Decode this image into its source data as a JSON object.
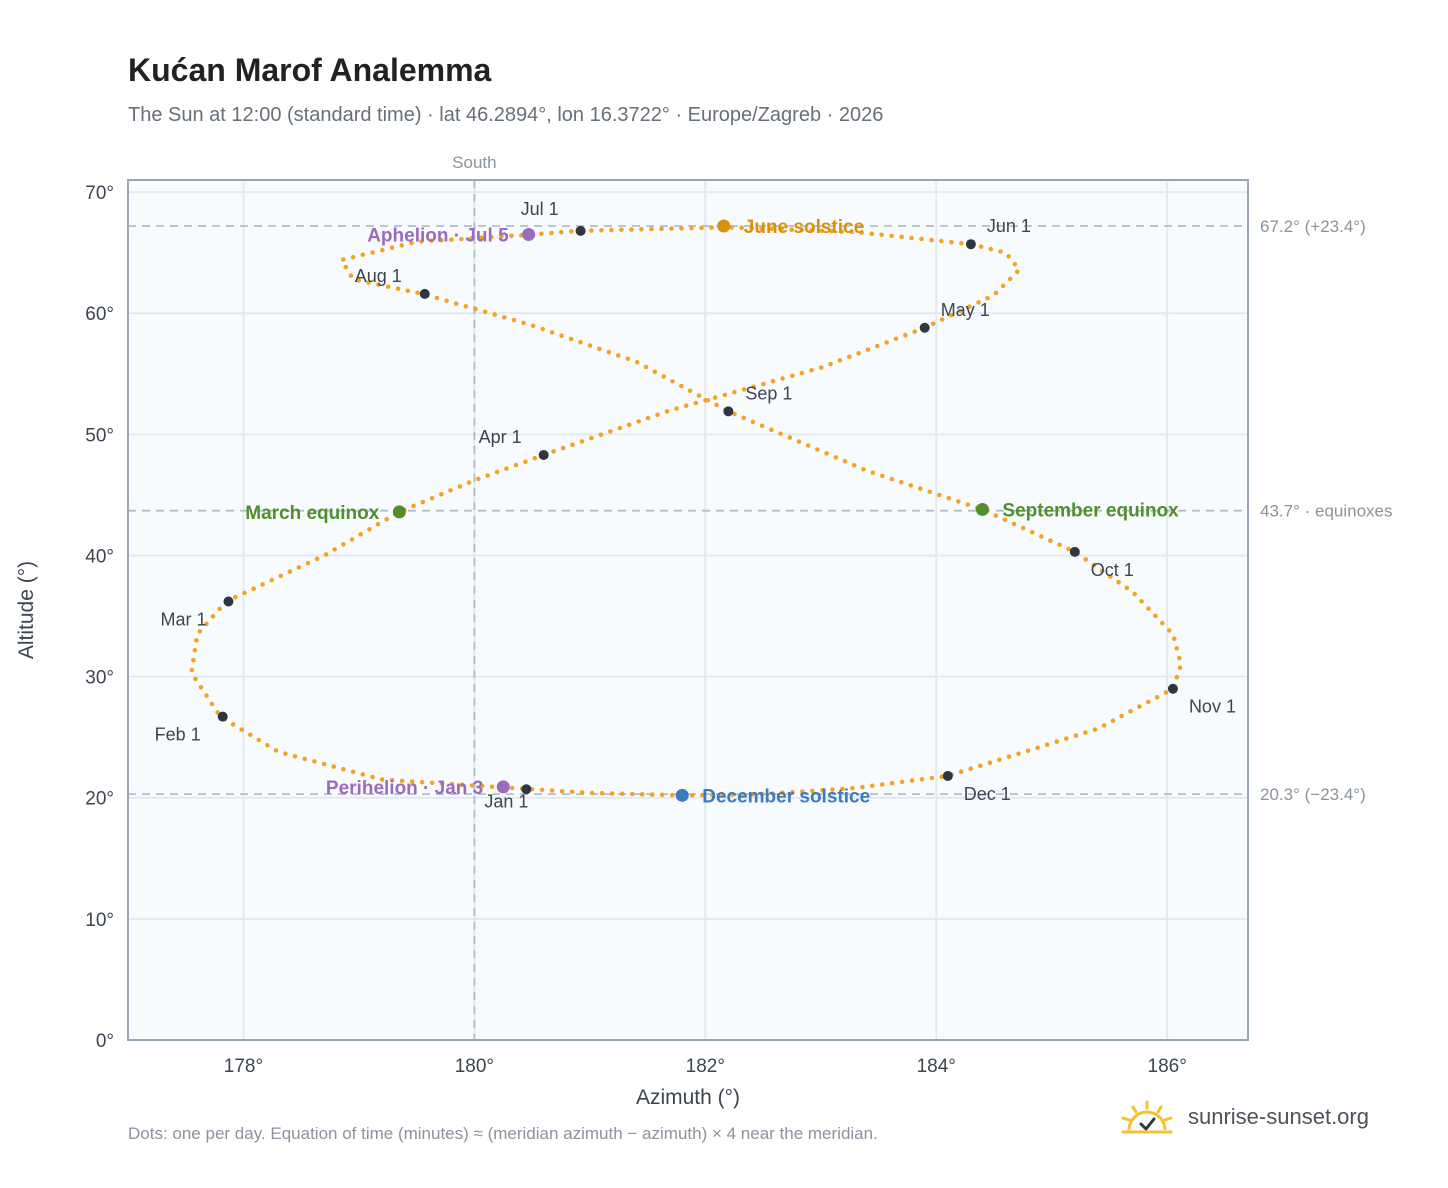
{
  "title": "Kućan Marof Analemma",
  "subtitle": "The Sun at 12:00 (standard time) · lat 46.2894°, lon 16.3722° · Europe/Zagreb · 2026",
  "footnote": "Dots: one per day. Equation of time (minutes) ≈ (meridian azimuth − azimuth) × 4 near the meridian.",
  "brand": {
    "name": "sunrise-sunset.org",
    "icon": "sunrise-logo-icon"
  },
  "colors": {
    "curve": "#f2a427",
    "month_dot": "#2f3640",
    "june_solstice": "#d9920c",
    "december_solstice": "#3a7bc0",
    "equinox": "#4f8f2e",
    "apsis": "#9b6bbd",
    "grid": "#e4e9ef",
    "axis_border": "#9aa6b4",
    "plot_bg": "#f8fbfd",
    "ref_line": "#b4bec9",
    "text_main": "#3d4550",
    "text_muted": "#8a939e"
  },
  "chart_data": {
    "type": "scatter",
    "title": "Kućan Marof Analemma",
    "xlabel": "Azimuth (°)",
    "ylabel": "Altitude (°)",
    "xlim": [
      177.0,
      186.7
    ],
    "ylim": [
      0,
      71
    ],
    "xticks": [
      178,
      180,
      182,
      184,
      186
    ],
    "xtick_labels": [
      "178°",
      "180°",
      "182°",
      "184°",
      "186°"
    ],
    "yticks": [
      0,
      10,
      20,
      30,
      40,
      50,
      60,
      70
    ],
    "ytick_labels": [
      "0°",
      "10°",
      "20°",
      "30°",
      "40°",
      "50°",
      "60°",
      "70°"
    ],
    "grid": true,
    "south_line": {
      "x": 180,
      "label": "South"
    },
    "reference_lines": [
      {
        "y": 67.2,
        "label": "67.2° (+23.4°)"
      },
      {
        "y": 43.7,
        "label": "43.7° · equinoxes"
      },
      {
        "y": 20.3,
        "label": "20.3° (−23.4°)"
      }
    ],
    "daily_path": [
      [
        180.5,
        20.7
      ],
      [
        179.2,
        21.5
      ],
      [
        178.3,
        23.8
      ],
      [
        177.8,
        26.7
      ],
      [
        177.55,
        30.3
      ],
      [
        177.6,
        33.5
      ],
      [
        177.85,
        36.2
      ],
      [
        178.7,
        40.0
      ],
      [
        179.35,
        43.6
      ],
      [
        180.0,
        46.2
      ],
      [
        180.6,
        48.3
      ],
      [
        181.7,
        52.0
      ],
      [
        183.0,
        55.5
      ],
      [
        183.9,
        58.8
      ],
      [
        184.5,
        61.5
      ],
      [
        184.72,
        63.6
      ],
      [
        184.6,
        65.0
      ],
      [
        184.3,
        65.7
      ],
      [
        183.3,
        66.7
      ],
      [
        182.2,
        67.1
      ],
      [
        180.9,
        66.8
      ],
      [
        180.5,
        66.5
      ],
      [
        179.5,
        65.9
      ],
      [
        178.85,
        64.4
      ],
      [
        178.95,
        62.8
      ],
      [
        179.55,
        61.6
      ],
      [
        180.5,
        59.0
      ],
      [
        181.4,
        56.0
      ],
      [
        182.2,
        51.9
      ],
      [
        183.4,
        47.0
      ],
      [
        184.4,
        43.8
      ],
      [
        185.2,
        40.3
      ],
      [
        185.7,
        37.0
      ],
      [
        186.05,
        33.5
      ],
      [
        186.12,
        31.0
      ],
      [
        186.05,
        29.0
      ],
      [
        185.4,
        25.7
      ],
      [
        184.1,
        21.8
      ],
      [
        183.3,
        20.8
      ],
      [
        182.5,
        20.3
      ],
      [
        181.8,
        20.2
      ],
      [
        181.0,
        20.4
      ],
      [
        180.5,
        20.7
      ]
    ],
    "month_markers": [
      {
        "label": "Jan 1",
        "az": 180.45,
        "alt": 20.7
      },
      {
        "label": "Feb 1",
        "az": 177.82,
        "alt": 26.7
      },
      {
        "label": "Mar 1",
        "az": 177.87,
        "alt": 36.2
      },
      {
        "label": "Apr 1",
        "az": 180.6,
        "alt": 48.3
      },
      {
        "label": "May 1",
        "az": 183.9,
        "alt": 58.8
      },
      {
        "label": "Jun 1",
        "az": 184.3,
        "alt": 65.7
      },
      {
        "label": "Jul 1",
        "az": 180.92,
        "alt": 66.8
      },
      {
        "label": "Aug 1",
        "az": 179.57,
        "alt": 61.6
      },
      {
        "label": "Sep 1",
        "az": 182.2,
        "alt": 51.9
      },
      {
        "label": "Oct 1",
        "az": 185.2,
        "alt": 40.3
      },
      {
        "label": "Nov 1",
        "az": 186.05,
        "alt": 29.0
      },
      {
        "label": "Dec 1",
        "az": 184.1,
        "alt": 21.8
      }
    ],
    "events": [
      {
        "label": "June solstice",
        "az": 182.16,
        "alt": 67.2,
        "kind": "june_solstice"
      },
      {
        "label": "December solstice",
        "az": 181.8,
        "alt": 20.2,
        "kind": "december_solstice"
      },
      {
        "label": "March equinox",
        "az": 179.35,
        "alt": 43.6,
        "kind": "equinox"
      },
      {
        "label": "September equinox",
        "az": 184.4,
        "alt": 43.8,
        "kind": "equinox"
      },
      {
        "label": "Aphelion · Jul 5",
        "az": 180.47,
        "alt": 66.5,
        "kind": "apsis"
      },
      {
        "label": "Perihelion · Jan 3",
        "az": 180.25,
        "alt": 20.9,
        "kind": "apsis"
      }
    ]
  }
}
